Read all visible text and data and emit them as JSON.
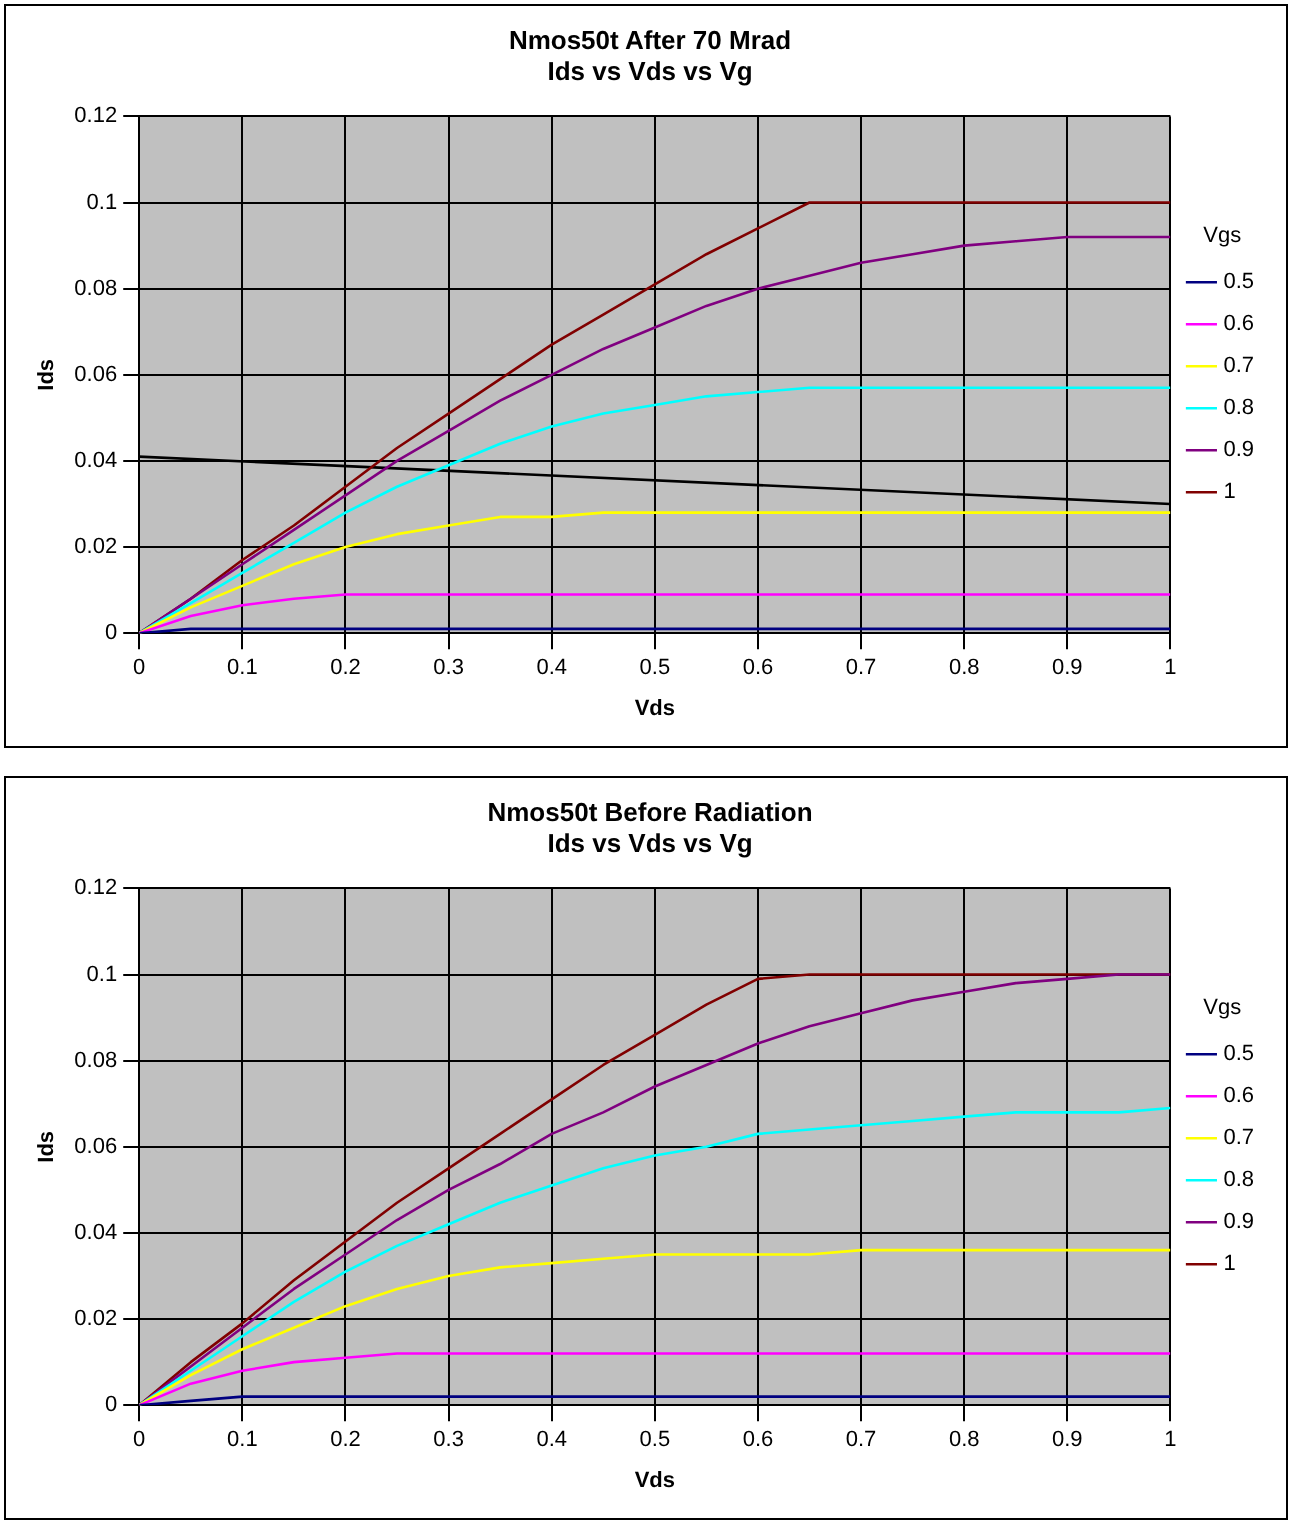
{
  "chart_data": [
    {
      "type": "line",
      "title": "Nmos50t After 70 Mrad",
      "subtitle": "Ids vs Vds vs Vg",
      "xlabel": "Vds",
      "ylabel": "Ids",
      "legend_title": "Vgs",
      "legend": "right",
      "grid": true,
      "marker": "none",
      "x": [
        0,
        0.05,
        0.1,
        0.15,
        0.2,
        0.25,
        0.3,
        0.35,
        0.4,
        0.45,
        0.5,
        0.55,
        0.6,
        0.65,
        0.7,
        0.75,
        0.8,
        0.85,
        0.9,
        0.95,
        1
      ],
      "xlim": [
        0,
        1
      ],
      "xticks": [
        0,
        0.1,
        0.2,
        0.3,
        0.4,
        0.5,
        0.6,
        0.7,
        0.8,
        0.9,
        1
      ],
      "ylim": [
        0,
        0.12
      ],
      "yticks": [
        0,
        0.02,
        0.04,
        0.06,
        0.08,
        0.1,
        0.12
      ],
      "series": [
        {
          "name": "0.5",
          "color": "#000080",
          "values": [
            0,
            0.001,
            0.001,
            0.001,
            0.001,
            0.001,
            0.001,
            0.001,
            0.001,
            0.001,
            0.001,
            0.001,
            0.001,
            0.001,
            0.001,
            0.001,
            0.001,
            0.001,
            0.001,
            0.001,
            0.001
          ]
        },
        {
          "name": "0.6",
          "color": "#ff00ff",
          "values": [
            0,
            0.004,
            0.0065,
            0.008,
            0.009,
            0.009,
            0.009,
            0.009,
            0.009,
            0.009,
            0.009,
            0.009,
            0.009,
            0.009,
            0.009,
            0.009,
            0.009,
            0.009,
            0.009,
            0.009,
            0.009
          ]
        },
        {
          "name": "0.7",
          "color": "#ffff00",
          "values": [
            0,
            0.006,
            0.011,
            0.016,
            0.02,
            0.023,
            0.025,
            0.027,
            0.027,
            0.028,
            0.028,
            0.028,
            0.028,
            0.028,
            0.028,
            0.028,
            0.028,
            0.028,
            0.028,
            0.028,
            0.028
          ]
        },
        {
          "name": "0.8",
          "color": "#00ffff",
          "values": [
            0,
            0.007,
            0.014,
            0.021,
            0.028,
            0.034,
            0.039,
            0.044,
            0.048,
            0.051,
            0.053,
            0.055,
            0.056,
            0.057,
            0.057,
            0.057,
            0.057,
            0.057,
            0.057,
            0.057,
            0.057
          ]
        },
        {
          "name": "0.9",
          "color": "#800080",
          "values": [
            0,
            0.008,
            0.016,
            0.024,
            0.032,
            0.04,
            0.047,
            0.054,
            0.06,
            0.066,
            0.071,
            0.076,
            0.08,
            0.083,
            0.086,
            0.088,
            0.09,
            0.091,
            0.092,
            0.092,
            0.092
          ]
        },
        {
          "name": "1",
          "color": "#800000",
          "values": [
            0,
            0.008,
            0.017,
            0.025,
            0.034,
            0.043,
            0.051,
            0.059,
            0.067,
            0.074,
            0.081,
            0.088,
            0.094,
            0.1,
            0.1,
            0.1,
            0.1,
            0.1,
            0.1,
            0.1,
            0.1
          ]
        },
        {
          "color": "#000000",
          "x": [
            0,
            1
          ],
          "values": [
            0.041,
            0.03
          ]
        }
      ]
    },
    {
      "type": "line",
      "title": "Nmos50t Before Radiation",
      "subtitle": "Ids vs Vds vs Vg",
      "xlabel": "Vds",
      "ylabel": "Ids",
      "legend_title": "Vgs",
      "legend": "right",
      "grid": true,
      "marker": "none",
      "x": [
        0,
        0.05,
        0.1,
        0.15,
        0.2,
        0.25,
        0.3,
        0.35,
        0.4,
        0.45,
        0.5,
        0.55,
        0.6,
        0.65,
        0.7,
        0.75,
        0.8,
        0.85,
        0.9,
        0.95,
        1
      ],
      "xlim": [
        0,
        1
      ],
      "xticks": [
        0,
        0.1,
        0.2,
        0.3,
        0.4,
        0.5,
        0.6,
        0.7,
        0.8,
        0.9,
        1
      ],
      "ylim": [
        0,
        0.12
      ],
      "yticks": [
        0,
        0.02,
        0.04,
        0.06,
        0.08,
        0.1,
        0.12
      ],
      "series": [
        {
          "name": "0.5",
          "color": "#000080",
          "values": [
            0,
            0.001,
            0.002,
            0.002,
            0.002,
            0.002,
            0.002,
            0.002,
            0.002,
            0.002,
            0.002,
            0.002,
            0.002,
            0.002,
            0.002,
            0.002,
            0.002,
            0.002,
            0.002,
            0.002,
            0.002
          ]
        },
        {
          "name": "0.6",
          "color": "#ff00ff",
          "values": [
            0,
            0.005,
            0.008,
            0.01,
            0.011,
            0.012,
            0.012,
            0.012,
            0.012,
            0.012,
            0.012,
            0.012,
            0.012,
            0.012,
            0.012,
            0.012,
            0.012,
            0.012,
            0.012,
            0.012,
            0.012
          ]
        },
        {
          "name": "0.7",
          "color": "#ffff00",
          "values": [
            0,
            0.007,
            0.013,
            0.018,
            0.023,
            0.027,
            0.03,
            0.032,
            0.033,
            0.034,
            0.035,
            0.035,
            0.035,
            0.035,
            0.036,
            0.036,
            0.036,
            0.036,
            0.036,
            0.036,
            0.036
          ]
        },
        {
          "name": "0.8",
          "color": "#00ffff",
          "values": [
            0,
            0.008,
            0.016,
            0.024,
            0.031,
            0.037,
            0.042,
            0.047,
            0.051,
            0.055,
            0.058,
            0.06,
            0.063,
            0.064,
            0.065,
            0.066,
            0.067,
            0.068,
            0.068,
            0.068,
            0.069
          ]
        },
        {
          "name": "0.9",
          "color": "#800080",
          "values": [
            0,
            0.009,
            0.018,
            0.027,
            0.035,
            0.043,
            0.05,
            0.056,
            0.063,
            0.068,
            0.074,
            0.079,
            0.084,
            0.088,
            0.091,
            0.094,
            0.096,
            0.098,
            0.099,
            0.1,
            0.1
          ]
        },
        {
          "name": "1",
          "color": "#800000",
          "values": [
            0,
            0.01,
            0.019,
            0.029,
            0.038,
            0.047,
            0.055,
            0.063,
            0.071,
            0.079,
            0.086,
            0.093,
            0.099,
            0.1,
            0.1,
            0.1,
            0.1,
            0.1,
            0.1,
            0.1,
            0.1
          ]
        }
      ]
    }
  ]
}
